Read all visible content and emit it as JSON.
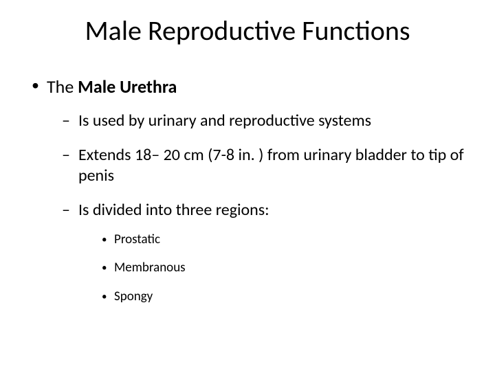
{
  "title": "Male Reproductive Functions",
  "bullet1_prefix": "The ",
  "bullet1_bold": "Male Urethra",
  "sub1": "Is used by urinary and reproductive systems",
  "sub2": "Extends 18– 20 cm (7-8 in. ) from urinary bladder to tip of penis",
  "sub3": "Is divided into three regions:",
  "subsub1": "Prostatic",
  "subsub2": "Membranous",
  "subsub3": "Spongy"
}
